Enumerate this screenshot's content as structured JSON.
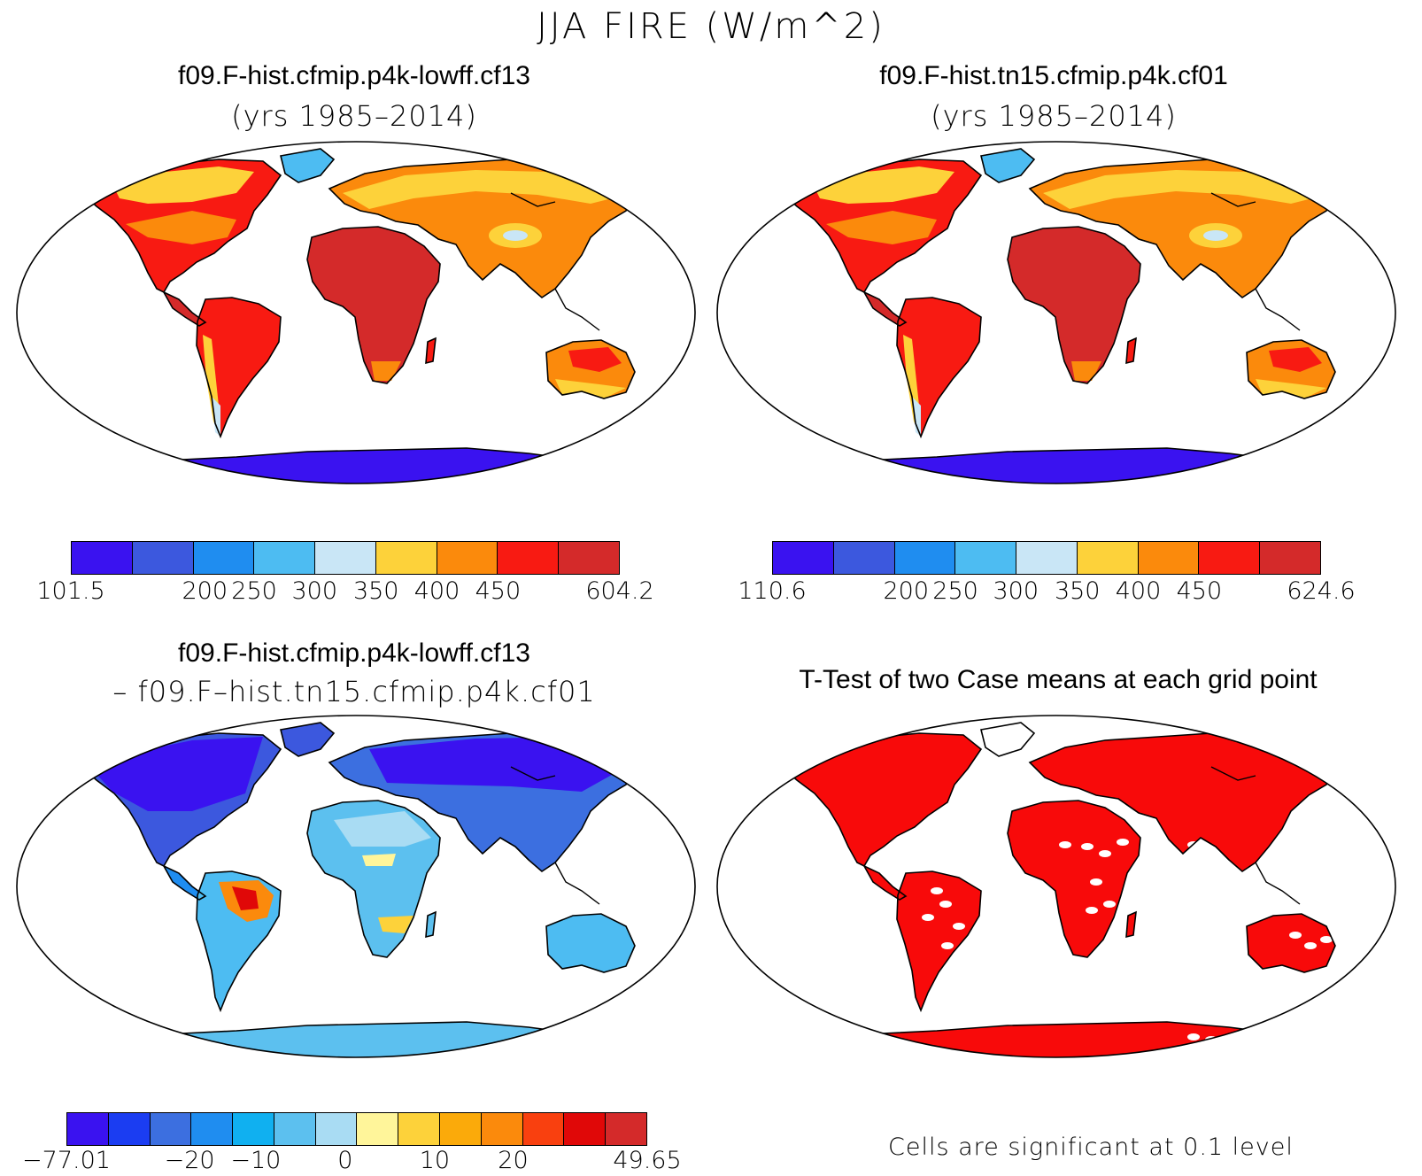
{
  "figure_title": "JJA FIRE (W/m^2)",
  "panels": [
    {
      "title": "f09.F-hist.cfmip.p4k-lowff.cf13",
      "subtitle": "(yrs 1985–2014)",
      "colorbar": {
        "colors": [
          "#3a12f0",
          "#3c58de",
          "#1f8df0",
          "#4dbcf2",
          "#c9e6f6",
          "#fdd23a",
          "#fb8a0c",
          "#f81a12",
          "#d42a2a"
        ],
        "ticks": [
          "101.5",
          "200",
          "250",
          "300",
          "350",
          "400",
          "450",
          "604.2"
        ]
      }
    },
    {
      "title": "f09.F-hist.tn15.cfmip.p4k.cf01",
      "subtitle": "(yrs 1985–2014)",
      "colorbar": {
        "colors": [
          "#3a12f0",
          "#3c58de",
          "#1f8df0",
          "#4dbcf2",
          "#c9e6f6",
          "#fdd23a",
          "#fb8a0c",
          "#f81a12",
          "#d42a2a"
        ],
        "ticks": [
          "110.6",
          "200",
          "250",
          "300",
          "350",
          "400",
          "450",
          "624.6"
        ]
      }
    },
    {
      "title": "f09.F-hist.cfmip.p4k-lowff.cf13",
      "subtitle": "– f09.F–hist.tn15.cfmip.p4k.cf01",
      "colorbar": {
        "colors": [
          "#3a12f0",
          "#1b3df2",
          "#3c6fe0",
          "#1f8df0",
          "#10b0f0",
          "#5cc0ef",
          "#a9dcf3",
          "#fff59a",
          "#fdd23a",
          "#fbaa0a",
          "#fb8a0c",
          "#f9400f",
          "#e00808",
          "#d42a2a"
        ],
        "ticks": [
          "−77.01",
          "−20",
          "−10",
          "0",
          "10",
          "20",
          "49.65"
        ]
      }
    },
    {
      "title": "T-Test of two Case means at each grid point",
      "note": "Cells are significant at 0.1 level"
    }
  ]
}
